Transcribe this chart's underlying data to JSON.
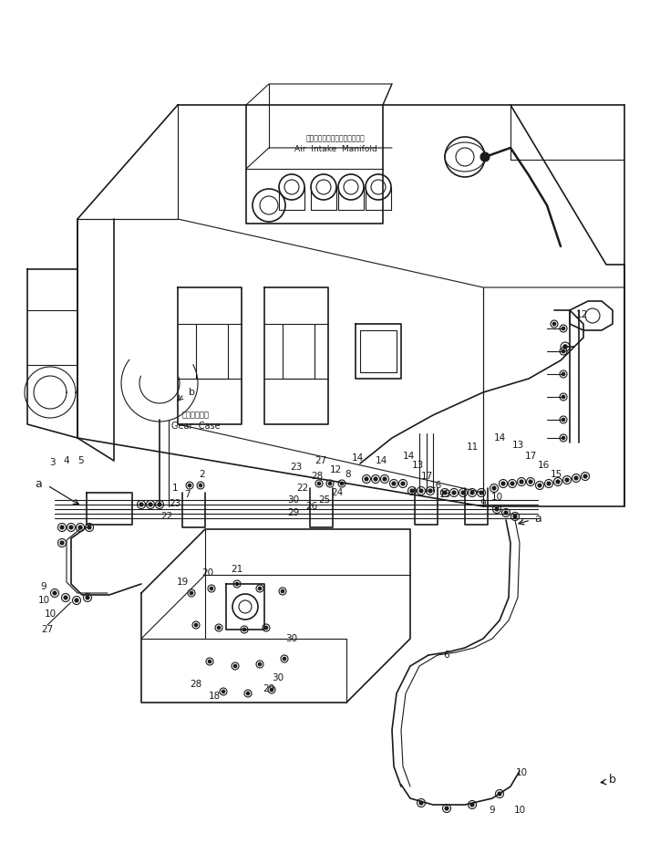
{
  "bg_color": "#ffffff",
  "line_color": "#1a1a1a",
  "fig_width": 7.24,
  "fig_height": 9.36,
  "dpi": 100,
  "labels": {
    "air_intake_jp": "エアーインテークマニホールド",
    "air_intake_en": "Air  Intake  Manifold",
    "gear_case_jp": "ギヤーケース",
    "gear_case_en": "Gear  Case"
  }
}
